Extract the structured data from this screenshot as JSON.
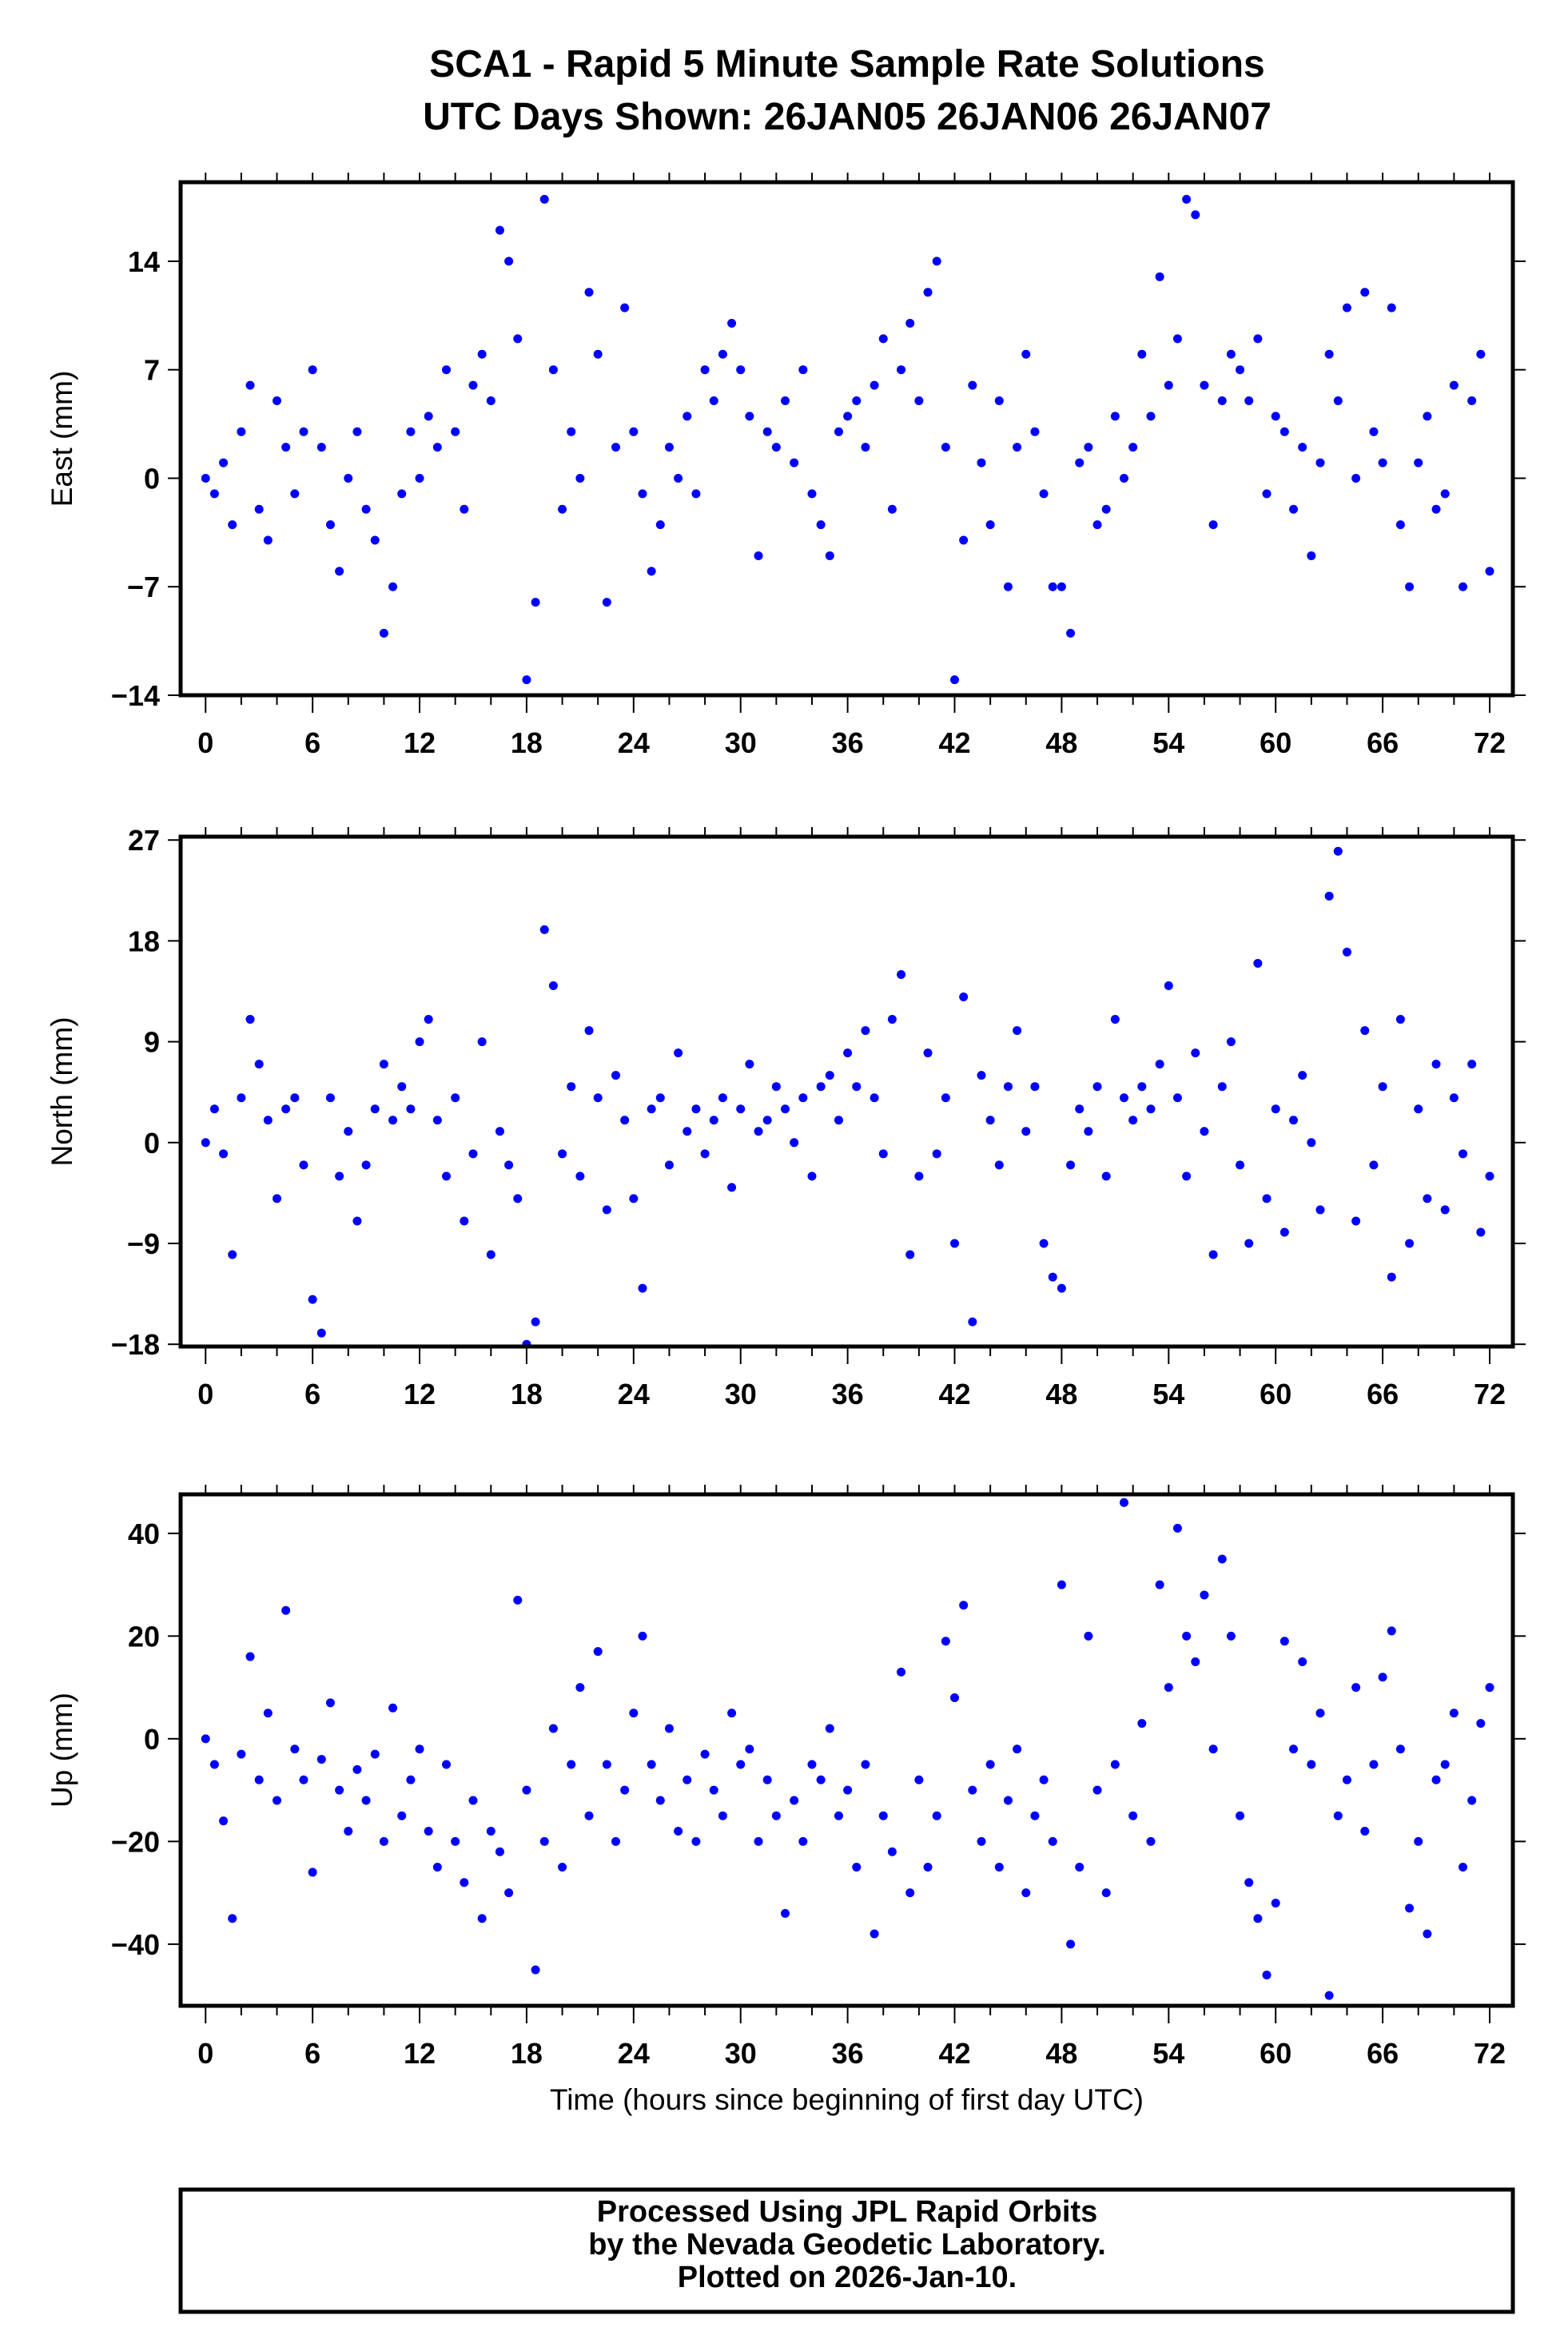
{
  "title": {
    "line1": "SCA1 - Rapid 5 Minute Sample Rate Solutions",
    "line2": "UTC Days Shown:  26JAN05 26JAN06 26JAN07"
  },
  "footer": {
    "line1": "Processed Using JPL Rapid Orbits",
    "line2": "by the Nevada Geodetic Laboratory.",
    "line3": "Plotted on 2026-Jan-10."
  },
  "colors": {
    "points": "#0000ff",
    "frame": "#000000"
  },
  "chart_data": [
    {
      "type": "scatter",
      "name": "east",
      "ylabel": "East (mm)",
      "xlabel": "",
      "xlim": [
        -1.4,
        73.3
      ],
      "ylim": [
        -14,
        19.1
      ],
      "xticks": [
        0,
        6,
        12,
        18,
        24,
        30,
        36,
        42,
        48,
        54,
        60,
        66,
        72
      ],
      "yticks": [
        -14,
        -7,
        0,
        7,
        14
      ],
      "ytick_labels": [
        "−14",
        "−7",
        "0",
        "7",
        "14"
      ],
      "x_start": 0,
      "x_step": 0.5,
      "values": [
        0,
        -1,
        1,
        -3,
        3,
        6,
        -2,
        -4,
        5,
        2,
        -1,
        3,
        7,
        2,
        -3,
        -6,
        0,
        3,
        -2,
        -4,
        -10,
        -7,
        -1,
        3,
        0,
        4,
        2,
        7,
        3,
        -2,
        6,
        8,
        5,
        16,
        14,
        9,
        -13,
        -8,
        18,
        7,
        -2,
        3,
        0,
        12,
        8,
        -8,
        2,
        11,
        3,
        -1,
        -6,
        -3,
        2,
        0,
        4,
        -1,
        7,
        5,
        8,
        10,
        7,
        4,
        -5,
        3,
        2,
        5,
        1,
        7,
        -1,
        -3,
        -5,
        3,
        4,
        5,
        2,
        6,
        9,
        -2,
        7,
        10,
        5,
        12,
        14,
        2,
        -13,
        -4,
        6,
        1,
        -3,
        5,
        -7,
        2,
        8,
        3,
        -1,
        -7,
        -7,
        -10,
        1,
        2,
        -3,
        -2,
        4,
        0,
        2,
        8,
        4,
        13,
        6,
        9,
        18,
        17,
        6,
        -3,
        5,
        8,
        7,
        5,
        9,
        -1,
        4,
        3,
        -2,
        2,
        -5,
        1,
        8,
        5,
        11,
        0,
        12,
        3,
        1,
        11,
        -3,
        -7,
        1,
        4,
        -2,
        -1,
        6,
        -7,
        5,
        8,
        -6
      ]
    },
    {
      "type": "scatter",
      "name": "north",
      "ylabel": "North (mm)",
      "xlabel": "",
      "xlim": [
        -1.4,
        73.3
      ],
      "ylim": [
        -18.2,
        27.3
      ],
      "xticks": [
        0,
        6,
        12,
        18,
        24,
        30,
        36,
        42,
        48,
        54,
        60,
        66,
        72
      ],
      "yticks": [
        -18,
        -9,
        0,
        9,
        18,
        27
      ],
      "ytick_labels": [
        "−18",
        "−9",
        "0",
        "9",
        "18",
        "27"
      ],
      "x_start": 0,
      "x_step": 0.5,
      "values": [
        0,
        3,
        -1,
        -10,
        4,
        11,
        7,
        2,
        -5,
        3,
        4,
        -2,
        -14,
        -17,
        4,
        -3,
        1,
        -7,
        -2,
        3,
        7,
        2,
        5,
        3,
        9,
        11,
        2,
        -3,
        4,
        -7,
        -1,
        9,
        -10,
        1,
        -2,
        -5,
        -18,
        -16,
        19,
        14,
        -1,
        5,
        -3,
        10,
        4,
        -6,
        6,
        2,
        -5,
        -13,
        3,
        4,
        -2,
        8,
        1,
        3,
        -1,
        2,
        4,
        -4,
        3,
        7,
        1,
        2,
        5,
        3,
        0,
        4,
        -3,
        5,
        6,
        2,
        8,
        5,
        10,
        4,
        -1,
        11,
        15,
        -10,
        -3,
        8,
        -1,
        4,
        -9,
        13,
        -16,
        6,
        2,
        -2,
        5,
        10,
        1,
        5,
        -9,
        -12,
        -13,
        -2,
        3,
        1,
        5,
        -3,
        11,
        4,
        2,
        5,
        3,
        7,
        14,
        4,
        -3,
        8,
        1,
        -10,
        5,
        9,
        -2,
        -9,
        16,
        -5,
        3,
        -8,
        2,
        6,
        0,
        -6,
        22,
        26,
        17,
        -7,
        10,
        -2,
        5,
        -12,
        11,
        -9,
        3,
        -5,
        7,
        -6,
        4,
        -1,
        7,
        -8,
        -3
      ]
    },
    {
      "type": "scatter",
      "name": "up",
      "ylabel": "Up (mm)",
      "xlabel": "Time (hours since beginning of first day UTC)",
      "xlim": [
        -1.4,
        73.3
      ],
      "ylim": [
        -52,
        47.6
      ],
      "xticks": [
        0,
        6,
        12,
        18,
        24,
        30,
        36,
        42,
        48,
        54,
        60,
        66,
        72
      ],
      "yticks": [
        -40,
        -20,
        0,
        20,
        40
      ],
      "ytick_labels": [
        "−40",
        "−20",
        "0",
        "20",
        "40"
      ],
      "x_start": 0,
      "x_step": 0.5,
      "values": [
        0,
        -5,
        -16,
        -35,
        -3,
        16,
        -8,
        5,
        -12,
        25,
        -2,
        -8,
        -26,
        -4,
        7,
        -10,
        -18,
        -6,
        -12,
        -3,
        -20,
        6,
        -15,
        -8,
        -2,
        -18,
        -25,
        -5,
        -20,
        -28,
        -12,
        -35,
        -18,
        -22,
        -30,
        27,
        -10,
        -45,
        -20,
        2,
        -25,
        -5,
        10,
        -15,
        17,
        -5,
        -20,
        -10,
        5,
        20,
        -5,
        -12,
        2,
        -18,
        -8,
        -20,
        -3,
        -10,
        -15,
        5,
        -5,
        -2,
        -20,
        -8,
        -15,
        -34,
        -12,
        -20,
        -5,
        -8,
        2,
        -15,
        -10,
        -25,
        -5,
        -38,
        -15,
        -22,
        13,
        -30,
        -8,
        -25,
        -15,
        19,
        8,
        26,
        -10,
        -20,
        -5,
        -25,
        -12,
        -2,
        -30,
        -15,
        -8,
        -20,
        30,
        -40,
        -25,
        20,
        -10,
        -30,
        -5,
        46,
        -15,
        3,
        -20,
        30,
        10,
        41,
        20,
        15,
        28,
        -2,
        35,
        20,
        -15,
        -28,
        -35,
        -46,
        -32,
        19,
        -2,
        15,
        -5,
        5,
        -50,
        -15,
        -8,
        10,
        -18,
        -5,
        12,
        21,
        -2,
        -33,
        -20,
        -38,
        -8,
        -5,
        5,
        -25,
        -12,
        3,
        10
      ]
    }
  ]
}
